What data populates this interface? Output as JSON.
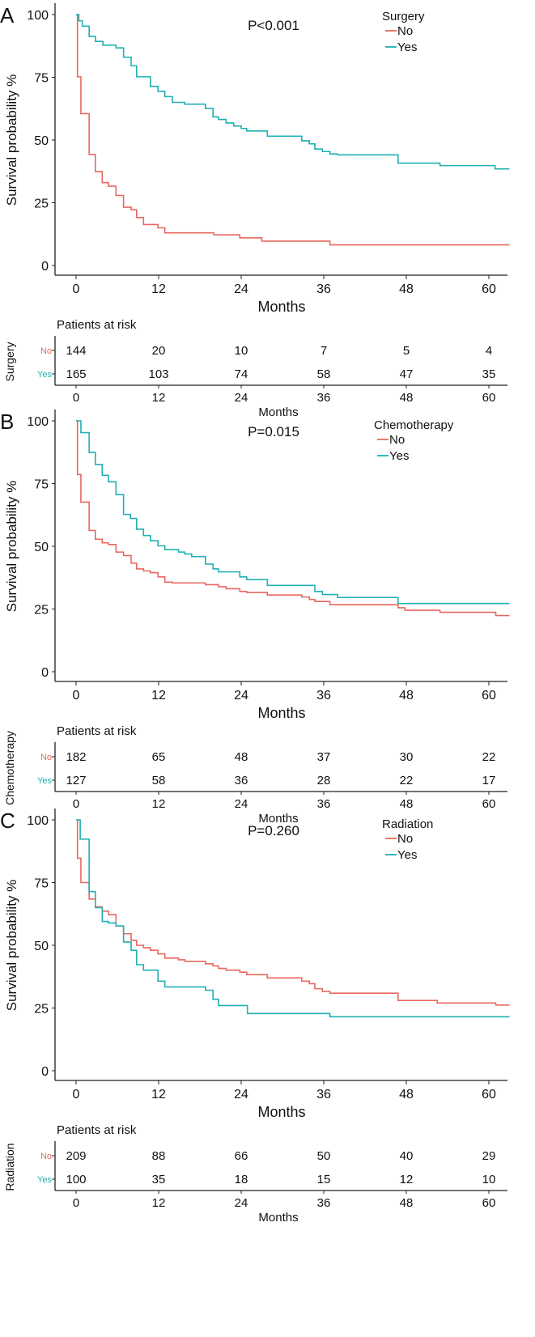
{
  "colors": {
    "no": "#e8685f",
    "yes": "#1fb0b3",
    "axis": "#222222"
  },
  "chart_data": [
    {
      "type": "line",
      "panel_label": "A",
      "title": "",
      "p_value": "P<0.001",
      "xlabel": "Months",
      "ylabel": "Survival probability %",
      "xticks": [
        0,
        12,
        24,
        36,
        48,
        60
      ],
      "yticks": [
        0,
        25,
        50,
        75,
        100
      ],
      "xlim": [
        0,
        63
      ],
      "ylim": [
        0,
        100
      ],
      "legend": {
        "title": "Surgery",
        "placement": "top-right",
        "entries": [
          "No",
          "Yes"
        ]
      },
      "series": [
        {
          "name": "No",
          "steps": [
            [
              0,
              100
            ],
            [
              0.2,
              75.2
            ],
            [
              0.7,
              60.5
            ],
            [
              1.9,
              44.2
            ],
            [
              2.8,
              37.4
            ],
            [
              3.8,
              33
            ],
            [
              4.7,
              31.6
            ],
            [
              5.8,
              27.9
            ],
            [
              6.9,
              23.2
            ],
            [
              8,
              22.2
            ],
            [
              8.8,
              19.1
            ],
            [
              9.8,
              16.3
            ],
            [
              11.9,
              15
            ],
            [
              12.9,
              13
            ],
            [
              20,
              12.2
            ],
            [
              23.8,
              11
            ],
            [
              27,
              9.7
            ],
            [
              36.9,
              8.2
            ]
          ]
        },
        {
          "name": "Yes",
          "steps": [
            [
              0,
              100
            ],
            [
              0.4,
              97.5
            ],
            [
              0.9,
              95.4
            ],
            [
              1.9,
              91.3
            ],
            [
              2.8,
              89.3
            ],
            [
              3.9,
              87.8
            ],
            [
              5.8,
              86.7
            ],
            [
              6.9,
              83
            ],
            [
              8,
              79.6
            ],
            [
              8.8,
              75.2
            ],
            [
              10.8,
              71.4
            ],
            [
              11.9,
              69.4
            ],
            [
              12.9,
              67.3
            ],
            [
              14,
              65
            ],
            [
              15.8,
              64.3
            ],
            [
              18.8,
              62.6
            ],
            [
              19.9,
              59.2
            ],
            [
              20.7,
              58.2
            ],
            [
              21.8,
              56.8
            ],
            [
              22.9,
              55.6
            ],
            [
              24,
              54.6
            ],
            [
              24.8,
              53.6
            ],
            [
              27.8,
              51.5
            ],
            [
              32.8,
              49.7
            ],
            [
              33.9,
              48.5
            ],
            [
              34.7,
              46.4
            ],
            [
              35.8,
              45.4
            ],
            [
              36.9,
              44.4
            ],
            [
              38,
              44.1
            ],
            [
              46.8,
              40.8
            ],
            [
              52.9,
              39.8
            ],
            [
              60.9,
              38.5
            ]
          ]
        }
      ],
      "risk_table": {
        "title": "Patients at risk",
        "group_label": "Surgery",
        "xlabel": "Months",
        "rows": [
          {
            "name": "No",
            "values": [
              144,
              20,
              10,
              7,
              5,
              4
            ]
          },
          {
            "name": "Yes",
            "values": [
              165,
              103,
              74,
              58,
              47,
              35
            ]
          }
        ]
      }
    },
    {
      "type": "line",
      "panel_label": "B",
      "title": "",
      "p_value": "P=0.015",
      "xlabel": "Months",
      "ylabel": "Survival probability %",
      "xticks": [
        0,
        12,
        24,
        36,
        48,
        60
      ],
      "yticks": [
        0,
        25,
        50,
        75,
        100
      ],
      "xlim": [
        0,
        63
      ],
      "ylim": [
        0,
        100
      ],
      "legend": {
        "title": "Chemotherapy",
        "placement": "top-right",
        "entries": [
          "No",
          "Yes"
        ]
      },
      "series": [
        {
          "name": "No",
          "steps": [
            [
              0,
              100
            ],
            [
              0.2,
              78.6
            ],
            [
              0.7,
              67.6
            ],
            [
              1.9,
              56.3
            ],
            [
              2.8,
              52.8
            ],
            [
              3.8,
              51.4
            ],
            [
              4.7,
              50.7
            ],
            [
              5.8,
              47.7
            ],
            [
              6.9,
              46.3
            ],
            [
              8,
              43.3
            ],
            [
              8.8,
              41
            ],
            [
              9.8,
              40.2
            ],
            [
              10.8,
              39.5
            ],
            [
              11.9,
              37.8
            ],
            [
              12.9,
              35.7
            ],
            [
              14,
              35.4
            ],
            [
              18.8,
              34.7
            ],
            [
              20.7,
              33.9
            ],
            [
              21.8,
              33.1
            ],
            [
              23.8,
              32
            ],
            [
              24.8,
              31.6
            ],
            [
              27.8,
              30.6
            ],
            [
              32.8,
              29.8
            ],
            [
              33.9,
              28.8
            ],
            [
              34.7,
              28
            ],
            [
              36.9,
              26.7
            ],
            [
              46.8,
              25.5
            ],
            [
              47.8,
              24.5
            ],
            [
              52.9,
              23.7
            ],
            [
              61,
              22.4
            ]
          ]
        },
        {
          "name": "Yes",
          "steps": [
            [
              0,
              100
            ],
            [
              0.7,
              95.3
            ],
            [
              1.9,
              87.4
            ],
            [
              2.8,
              82.6
            ],
            [
              3.8,
              78.3
            ],
            [
              4.7,
              75.7
            ],
            [
              5.8,
              70.6
            ],
            [
              6.9,
              62.7
            ],
            [
              7.9,
              61.1
            ],
            [
              8.8,
              56.8
            ],
            [
              9.8,
              54.3
            ],
            [
              10.8,
              52.2
            ],
            [
              11.9,
              50.2
            ],
            [
              12.9,
              48.7
            ],
            [
              14.9,
              47.7
            ],
            [
              15.8,
              46.9
            ],
            [
              16.8,
              45.9
            ],
            [
              18.8,
              42.9
            ],
            [
              19.9,
              41
            ],
            [
              20.7,
              39.8
            ],
            [
              23.8,
              37.8
            ],
            [
              24.8,
              36.7
            ],
            [
              27.8,
              34.4
            ],
            [
              34.7,
              32
            ],
            [
              35.8,
              30.8
            ],
            [
              38,
              29.6
            ],
            [
              46.8,
              27.2
            ]
          ]
        }
      ],
      "risk_table": {
        "title": "Patients at risk",
        "group_label": "Chemotherapy",
        "xlabel": "Months",
        "rows": [
          {
            "name": "No",
            "values": [
              182,
              65,
              48,
              37,
              30,
              22
            ]
          },
          {
            "name": "Yes",
            "values": [
              127,
              58,
              36,
              28,
              22,
              17
            ]
          }
        ]
      }
    },
    {
      "type": "line",
      "panel_label": "C",
      "title": "",
      "p_value": "P=0.260",
      "xlabel": "Months",
      "ylabel": "Survival probability %",
      "xticks": [
        0,
        12,
        24,
        36,
        48,
        60
      ],
      "yticks": [
        0,
        25,
        50,
        75,
        100
      ],
      "xlim": [
        0,
        63
      ],
      "ylim": [
        0,
        100
      ],
      "legend": {
        "title": "Radiation",
        "placement": "top-right",
        "entries": [
          "No",
          "Yes"
        ]
      },
      "series": [
        {
          "name": "No",
          "steps": [
            [
              0,
              100
            ],
            [
              0.2,
              84.7
            ],
            [
              0.7,
              75
            ],
            [
              1.9,
              68.4
            ],
            [
              2.8,
              65.3
            ],
            [
              3.8,
              63.6
            ],
            [
              4.7,
              62.2
            ],
            [
              5.8,
              57.7
            ],
            [
              6.9,
              54.6
            ],
            [
              8,
              52
            ],
            [
              8.8,
              50
            ],
            [
              9.8,
              49
            ],
            [
              10.8,
              48
            ],
            [
              11.9,
              46.6
            ],
            [
              12.9,
              44.9
            ],
            [
              14.9,
              44.2
            ],
            [
              15.8,
              43.6
            ],
            [
              18.8,
              42.6
            ],
            [
              19.9,
              41.8
            ],
            [
              20.7,
              40.8
            ],
            [
              21.8,
              40.1
            ],
            [
              23.8,
              39.3
            ],
            [
              24.8,
              38.3
            ],
            [
              27.8,
              37
            ],
            [
              32.8,
              35.7
            ],
            [
              33.9,
              34.7
            ],
            [
              34.7,
              32.7
            ],
            [
              35.8,
              31.6
            ],
            [
              36.9,
              30.9
            ],
            [
              46.8,
              28
            ],
            [
              52.5,
              27
            ],
            [
              61,
              26.2
            ]
          ]
        },
        {
          "name": "Yes",
          "steps": [
            [
              0,
              100
            ],
            [
              0.6,
              92.3
            ],
            [
              1.9,
              71.4
            ],
            [
              2.8,
              65
            ],
            [
              3.8,
              59.5
            ],
            [
              4.7,
              58.9
            ],
            [
              5.8,
              57.7
            ],
            [
              6.9,
              51.3
            ],
            [
              8,
              48
            ],
            [
              8.8,
              42.3
            ],
            [
              9.8,
              40.1
            ],
            [
              11.9,
              35.7
            ],
            [
              12.9,
              33.4
            ],
            [
              18.8,
              32.1
            ],
            [
              19.9,
              28.5
            ],
            [
              20.7,
              26
            ],
            [
              24.9,
              22.8
            ],
            [
              36.9,
              21.5
            ]
          ]
        }
      ],
      "risk_table": {
        "title": "Patients at risk",
        "group_label": "Radiation",
        "xlabel": "Months",
        "rows": [
          {
            "name": "No",
            "values": [
              209,
              88,
              66,
              50,
              40,
              29
            ]
          },
          {
            "name": "Yes",
            "values": [
              100,
              35,
              18,
              15,
              12,
              10
            ]
          }
        ]
      }
    }
  ]
}
